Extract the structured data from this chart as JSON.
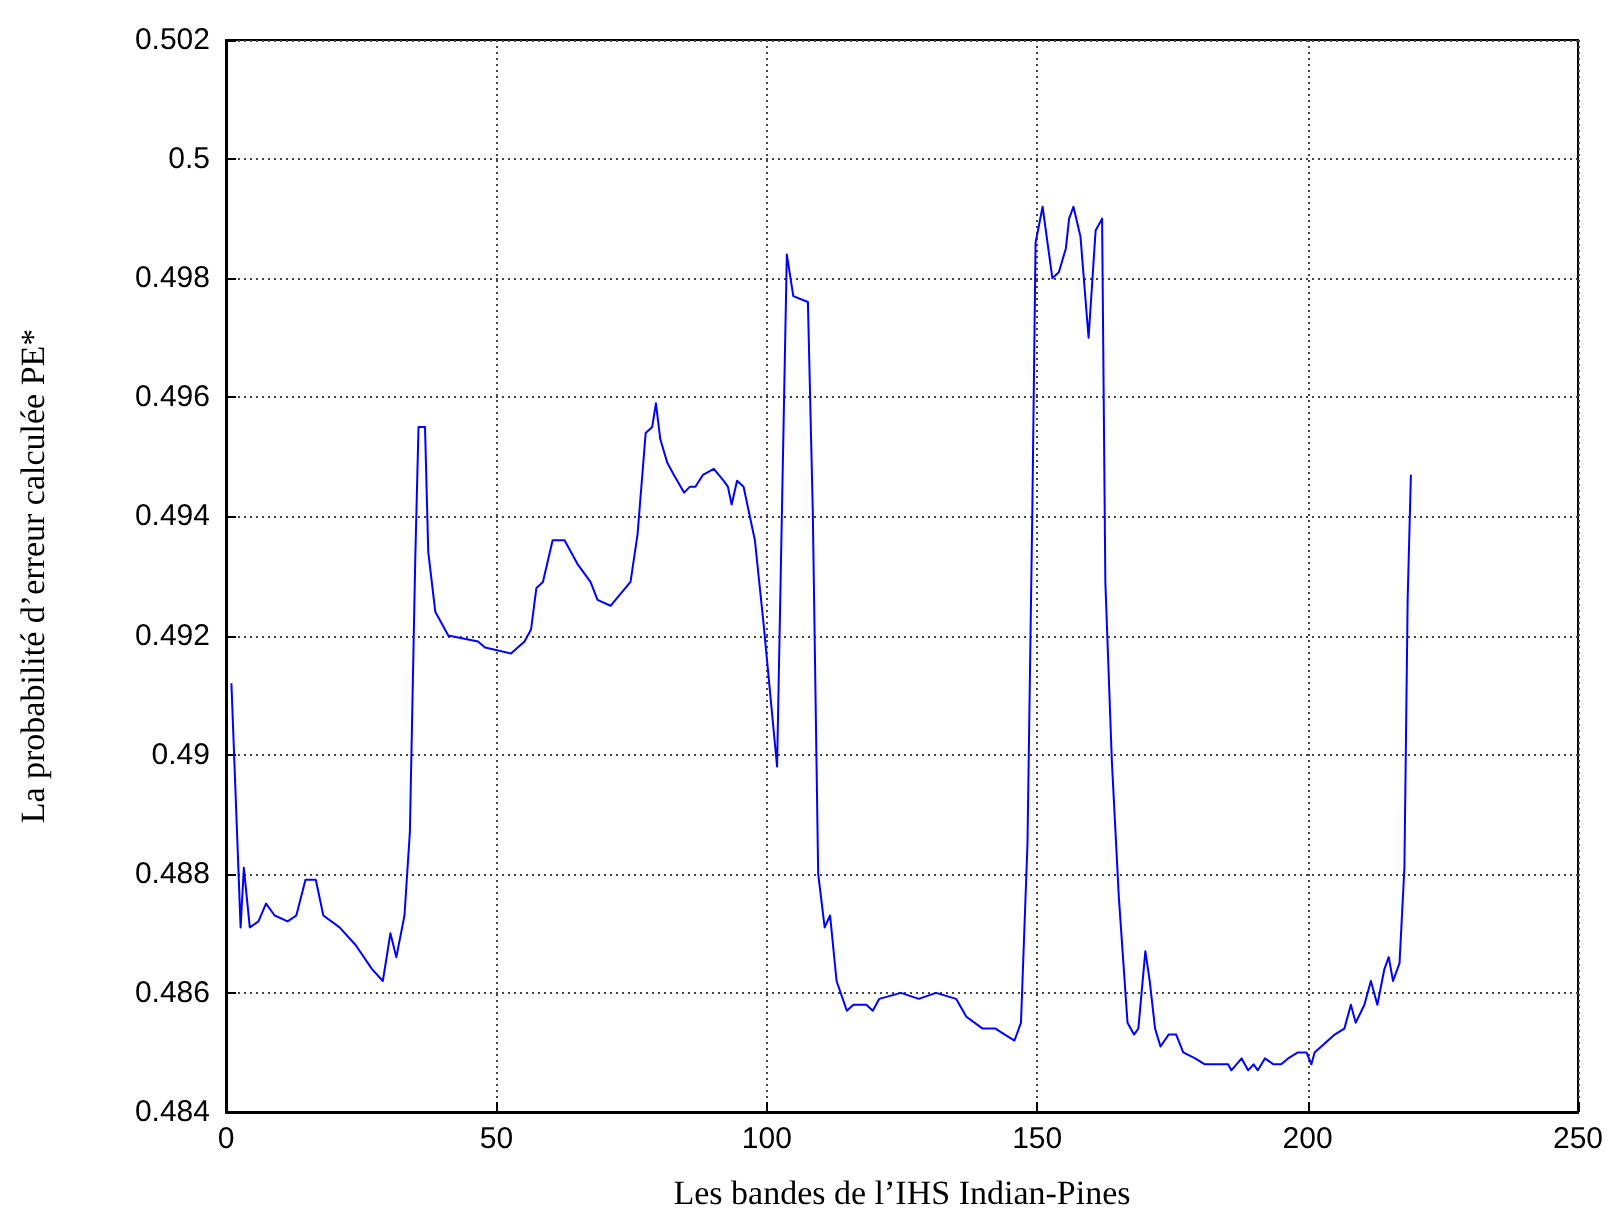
{
  "chart_data": {
    "type": "line",
    "xlabel": "Les bandes de l’IHS Indian-Pines",
    "ylabel": "La probabilité d’erreur calculée PE*",
    "x": [
      1,
      2.7,
      3.3,
      4.4,
      6,
      7.4,
      9,
      11.4,
      13,
      14.7,
      16.6,
      18,
      21,
      24,
      27,
      29,
      30.4,
      31.5,
      33,
      34,
      35,
      35.6,
      36.8,
      37.4,
      38.7,
      41.1,
      46.6,
      47.9,
      52.7,
      55.2,
      56.4,
      57.4,
      58.6,
      60.4,
      62.6,
      65,
      67.4,
      68.7,
      71.1,
      74.8,
      76.1,
      77.6,
      78.8,
      79.5,
      80.3,
      81.6,
      82.8,
      84.7,
      85.8,
      86.8,
      88.2,
      90.2,
      92,
      92.8,
      93.5,
      94.5,
      95.7,
      97.8,
      99.4,
      101.9,
      103.7,
      104.9,
      107.6,
      108.5,
      109.5,
      110.7,
      111.7,
      112.9,
      114.8,
      116,
      118.4,
      119.6,
      120.8,
      124.8,
      128.1,
      131.3,
      135,
      136.9,
      139.9,
      142.3,
      144,
      145.8,
      147,
      148.2,
      149.1,
      149.7,
      151,
      152.8,
      154,
      155.3,
      155.9,
      156.7,
      158,
      159.5,
      160.8,
      162,
      162.6,
      163.8,
      165.1,
      166.7,
      167.9,
      168.7,
      170,
      170.8,
      171.8,
      172.8,
      174.3,
      175.7,
      177,
      179.2,
      181,
      182.9,
      185.3,
      185.9,
      187.8,
      189,
      190,
      190.8,
      192.1,
      193.7,
      195.1,
      196.4,
      198.2,
      199.8,
      200.7,
      201.3,
      205,
      206.8,
      208,
      208.9,
      210.5,
      211.7,
      212.9,
      214.2,
      215,
      215.8,
      217,
      217.9,
      218.5,
      219.1
    ],
    "series": [
      {
        "color": "#0000ff",
        "values": [
          0.4912,
          0.4871,
          0.4881,
          0.4871,
          0.4872,
          0.4875,
          0.4873,
          0.4872,
          0.4873,
          0.4879,
          0.4879,
          0.4873,
          0.4871,
          0.4868,
          0.4864,
          0.4862,
          0.487,
          0.4866,
          0.4873,
          0.4887,
          0.4933,
          0.4955,
          0.4955,
          0.4934,
          0.4924,
          0.492,
          0.4919,
          0.4918,
          0.4917,
          0.4919,
          0.4921,
          0.4928,
          0.4929,
          0.4936,
          0.4936,
          0.4932,
          0.4929,
          0.4926,
          0.4925,
          0.4929,
          0.4937,
          0.4954,
          0.4955,
          0.4959,
          0.4953,
          0.4949,
          0.4947,
          0.4944,
          0.4945,
          0.4945,
          0.4947,
          0.4948,
          0.4946,
          0.4945,
          0.4942,
          0.4946,
          0.4945,
          0.4936,
          0.4922,
          0.4898,
          0.4984,
          0.4977,
          0.4976,
          0.4941,
          0.488,
          0.4871,
          0.4873,
          0.4862,
          0.4857,
          0.4858,
          0.4858,
          0.4857,
          0.4859,
          0.486,
          0.4859,
          0.486,
          0.4859,
          0.4856,
          0.4854,
          0.4854,
          0.4853,
          0.4852,
          0.4855,
          0.4885,
          0.4941,
          0.4986,
          0.4992,
          0.498,
          0.4981,
          0.4985,
          0.499,
          0.4992,
          0.4987,
          0.497,
          0.4988,
          0.499,
          0.4929,
          0.4899,
          0.4876,
          0.4855,
          0.4853,
          0.4854,
          0.4867,
          0.4862,
          0.4854,
          0.4851,
          0.4853,
          0.4853,
          0.485,
          0.4849,
          0.4848,
          0.4848,
          0.4848,
          0.4847,
          0.4849,
          0.4847,
          0.4848,
          0.4847,
          0.4849,
          0.4848,
          0.4848,
          0.4849,
          0.485,
          0.485,
          0.4848,
          0.485,
          0.4853,
          0.4854,
          0.4858,
          0.4855,
          0.4858,
          0.4862,
          0.4858,
          0.4864,
          0.4866,
          0.4862,
          0.4865,
          0.4881,
          0.4926,
          0.4947
        ]
      }
    ],
    "xlim": [
      0,
      250
    ],
    "xticks": [
      0,
      50,
      100,
      150,
      200,
      250
    ],
    "ylim": [
      0.484,
      0.502
    ],
    "yticks": [
      0.484,
      0.486,
      0.488,
      0.49,
      0.492,
      0.494,
      0.496,
      0.498,
      0.5,
      0.502
    ],
    "grid": true,
    "marker": "none",
    "line_style": "solid"
  }
}
